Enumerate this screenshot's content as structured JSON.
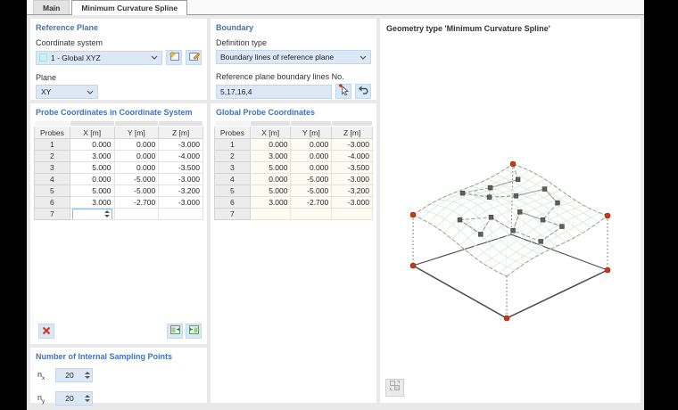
{
  "tabs": [
    {
      "label": "Main",
      "active": false
    },
    {
      "label": "Minimum Curvature Spline",
      "active": true
    }
  ],
  "reference_plane": {
    "title": "Reference Plane",
    "coordinate_system_label": "Coordinate system",
    "coordinate_system_value": "1 - Global XYZ",
    "plane_label": "Plane",
    "plane_value": "XY"
  },
  "boundary": {
    "title": "Boundary",
    "definition_type_label": "Definition type",
    "definition_type_value": "Boundary lines of reference plane",
    "boundary_lines_label": "Reference plane boundary lines No.",
    "boundary_lines_value": "5,17,16,4"
  },
  "local_table": {
    "title": "Probe Coordinates in Coordinate System",
    "columns": [
      "Probes",
      "X [m]",
      "Y [m]",
      "Z [m]"
    ],
    "rows": [
      [
        "1",
        "0.000",
        "0.000",
        "-3.000"
      ],
      [
        "2",
        "3.000",
        "0.000",
        "-4.000"
      ],
      [
        "3",
        "5.000",
        "0.000",
        "-3.500"
      ],
      [
        "4",
        "0.000",
        "-5.000",
        "-3.000"
      ],
      [
        "5",
        "5.000",
        "-5.000",
        "-3.200"
      ],
      [
        "6",
        "3.000",
        "-2.700",
        "-3.000"
      ],
      [
        "7",
        "",
        "",
        ""
      ]
    ]
  },
  "global_table": {
    "title": "Global Probe Coordinates",
    "columns": [
      "Probes",
      "X [m]",
      "Y [m]",
      "Z [m]"
    ],
    "rows": [
      [
        "1",
        "0.000",
        "0.000",
        "-3.000"
      ],
      [
        "2",
        "3.000",
        "0.000",
        "-4.000"
      ],
      [
        "3",
        "5.000",
        "0.000",
        "-3.500"
      ],
      [
        "4",
        "0.000",
        "-5.000",
        "-3.000"
      ],
      [
        "5",
        "5.000",
        "-5.000",
        "-3.200"
      ],
      [
        "6",
        "3.000",
        "-2.700",
        "-3.000"
      ],
      [
        "7",
        "",
        "",
        ""
      ]
    ]
  },
  "sampling": {
    "title": "Number of Internal Sampling Points",
    "nx_label": "n",
    "nx_sub": "x",
    "nx_value": "20",
    "ny_label": "n",
    "ny_sub": "y",
    "ny_value": "20"
  },
  "viz": {
    "title": "Geometry type 'Minimum Curvature Spline'",
    "mesh_color": "#cfe8cf",
    "mesh_diag_color": "#e2f1e2",
    "dash_color": "#9a9a9a",
    "marker_color": "#5f5f5f",
    "node_color": "#cc3a10",
    "base_color": "#4a4a4a",
    "dotted_color": "#606060"
  },
  "colors": {
    "heading_blue": "#4372b8",
    "field_blue": "#dce8f6",
    "readonly_cream": "#fcfcf2",
    "delete_red": "#d8301c"
  }
}
